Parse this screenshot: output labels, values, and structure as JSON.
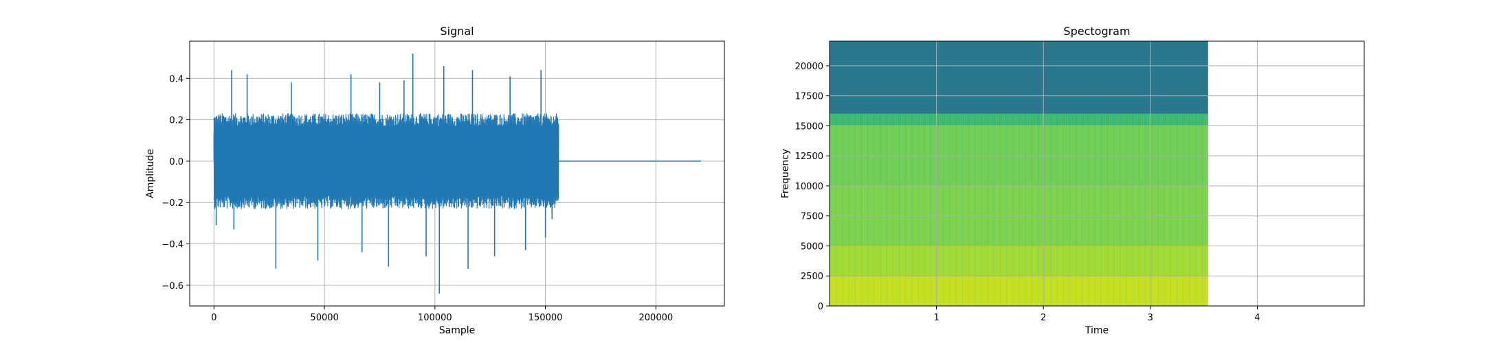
{
  "chart_data": [
    {
      "type": "line",
      "title": "Signal",
      "xlabel": "Sample",
      "ylabel": "Amplitude",
      "xlim": [
        -11000,
        231000
      ],
      "ylim": [
        -0.7,
        0.58
      ],
      "xticks": [
        0,
        50000,
        100000,
        150000,
        200000
      ],
      "xtick_labels": [
        "0",
        "50000",
        "100000",
        "150000",
        "200000"
      ],
      "yticks": [
        -0.6,
        -0.4,
        -0.2,
        0.0,
        0.2,
        0.4
      ],
      "ytick_labels": [
        "−0.6",
        "−0.4",
        "−0.2",
        "0.0",
        "0.2",
        "0.4"
      ],
      "grid": true,
      "line_color": "#1f77b4",
      "series": [
        {
          "signal_end_sample": 156000,
          "total_samples": 220500,
          "typical_envelope": [
            -0.23,
            0.23
          ],
          "x": [
            0,
            1000,
            8000,
            9000,
            15000,
            28000,
            35000,
            47000,
            62000,
            67000,
            75000,
            79000,
            86000,
            90000,
            96000,
            102000,
            104000,
            115000,
            117000,
            127000,
            134000,
            141000,
            148000,
            150000,
            153000,
            156000
          ],
          "y": [
            0.13,
            -0.31,
            0.44,
            -0.33,
            0.42,
            -0.52,
            0.38,
            -0.48,
            0.42,
            -0.44,
            0.38,
            -0.51,
            0.39,
            0.52,
            -0.46,
            -0.64,
            0.46,
            -0.52,
            0.44,
            -0.46,
            0.41,
            -0.43,
            0.44,
            -0.37,
            -0.28,
            0.0
          ]
        }
      ]
    },
    {
      "type": "heatmap",
      "title": "Spectogram",
      "xlabel": "Time",
      "ylabel": "Frequency",
      "xlim": [
        0.0,
        5.0
      ],
      "ylim": [
        0,
        22050
      ],
      "xticks": [
        1,
        2,
        3,
        4
      ],
      "xtick_labels": [
        "1",
        "2",
        "3",
        "4"
      ],
      "yticks": [
        0,
        2500,
        5000,
        7500,
        10000,
        12500,
        15000,
        17500,
        20000
      ],
      "ytick_labels": [
        "0",
        "2500",
        "5000",
        "7500",
        "10000",
        "12500",
        "15000",
        "17500",
        "20000"
      ],
      "grid": true,
      "data_end_time": 3.54,
      "colormap": "viridis",
      "frequency_bands": [
        {
          "from": 0,
          "to": 2500,
          "color": "#c8e020"
        },
        {
          "from": 2500,
          "to": 5000,
          "color": "#a2da37"
        },
        {
          "from": 5000,
          "to": 10000,
          "color": "#7ad151"
        },
        {
          "from": 10000,
          "to": 15000,
          "color": "#6ccd5a"
        },
        {
          "from": 15000,
          "to": 16000,
          "color": "#35b779"
        },
        {
          "from": 16000,
          "to": 22050,
          "color": "#2a788e"
        }
      ]
    }
  ]
}
